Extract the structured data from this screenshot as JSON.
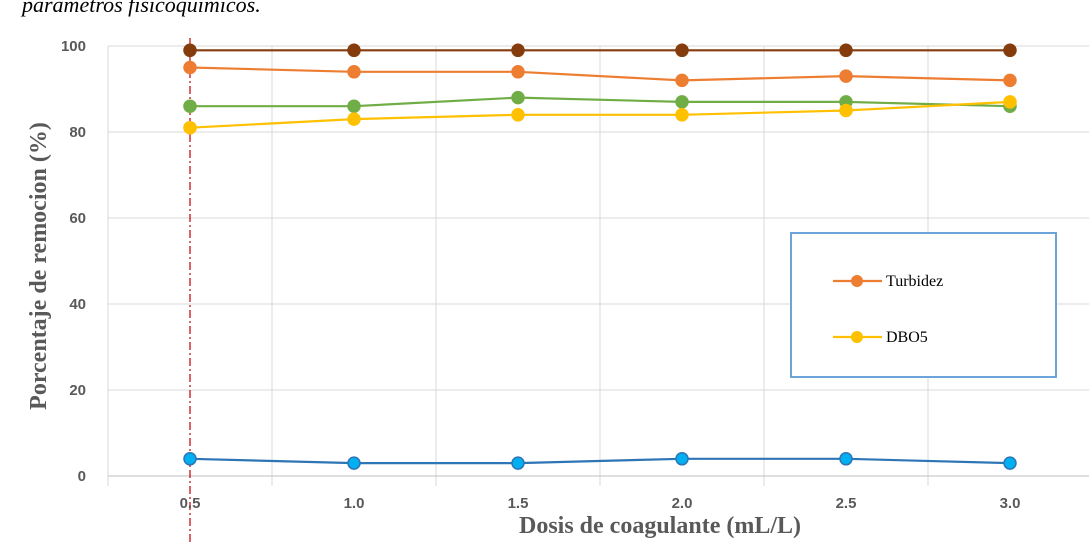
{
  "caption": "parámetros fisicoquímicos.",
  "chart_data": {
    "type": "line",
    "title": "",
    "xlabel": "Dosis de coagulante (mL/L)",
    "ylabel": "Porcentaje de remocion (%)",
    "x": [
      "0.5",
      "1.0",
      "1.5",
      "2.0",
      "2.5",
      "3.0"
    ],
    "ylim": [
      0,
      100
    ],
    "yticks": [
      0,
      20,
      40,
      60,
      80,
      100
    ],
    "grid": true,
    "legend_position": "right",
    "reference_line_x": "0.5",
    "series": [
      {
        "name": "",
        "color": "#843c0c",
        "values": [
          99,
          99,
          99,
          99,
          99,
          99
        ]
      },
      {
        "name": "Turbidez",
        "color": "#ed7d31",
        "values": [
          95,
          94,
          94,
          92,
          93,
          92
        ]
      },
      {
        "name": "",
        "color": "#70ad47",
        "values": [
          86,
          86,
          88,
          87,
          87,
          86
        ]
      },
      {
        "name": "DBO5",
        "color": "#ffc000",
        "values": [
          81,
          83,
          84,
          84,
          85,
          87
        ]
      },
      {
        "name": "",
        "color": "#2e75b6",
        "marker_fill": "#00b0f0",
        "values": [
          4,
          3,
          3,
          4,
          4,
          3
        ]
      }
    ],
    "legend": [
      {
        "label": "Turbidez",
        "color": "#ed7d31"
      },
      {
        "label": "DBO5",
        "color": "#ffc000"
      }
    ]
  }
}
